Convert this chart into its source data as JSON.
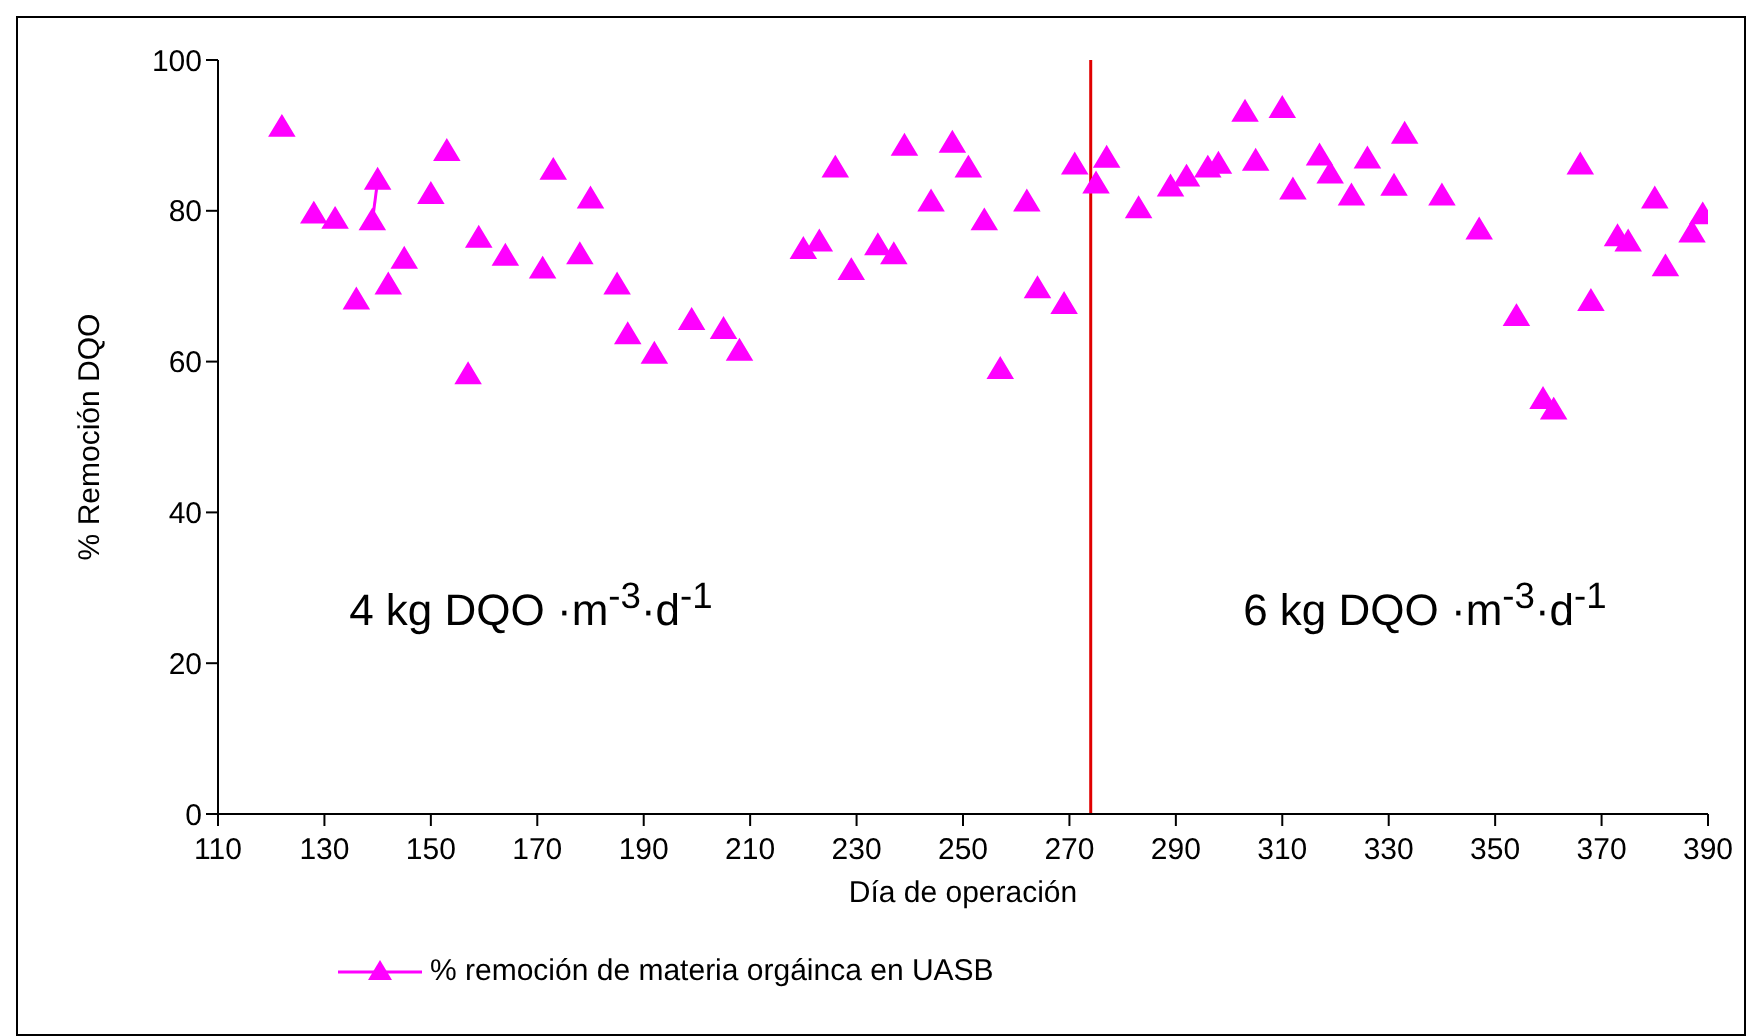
{
  "chart_data": {
    "type": "line",
    "xlabel": "Día de operación",
    "ylabel": "% Remoción DQO",
    "x": [
      122,
      123,
      128,
      129,
      132,
      133,
      136,
      137,
      139,
      140,
      141,
      142,
      143,
      145,
      146,
      150,
      151,
      153,
      154,
      157,
      158,
      159,
      160,
      164,
      165,
      171,
      172,
      173,
      174,
      178,
      179,
      180,
      181,
      185,
      186,
      187,
      188,
      192,
      193,
      199,
      200,
      205,
      206,
      208,
      209,
      220,
      221,
      223,
      224,
      226,
      227,
      229,
      230,
      234,
      235,
      237,
      238,
      239,
      240,
      244,
      245,
      248,
      249,
      251,
      252,
      254,
      255,
      257,
      258,
      262,
      263,
      264,
      265,
      269,
      270,
      271,
      272,
      275,
      276,
      277,
      278,
      283,
      284,
      289,
      290,
      292,
      293,
      296,
      297,
      298,
      299,
      303,
      304,
      305,
      306,
      310,
      311,
      312,
      313,
      317,
      318,
      319,
      320,
      323,
      324,
      326,
      327,
      331,
      332,
      333,
      334,
      340,
      341,
      347,
      348,
      354,
      355,
      359,
      360,
      361,
      362,
      366,
      367,
      368,
      369,
      373,
      374,
      375,
      376,
      380,
      381,
      382,
      383,
      387,
      388,
      389
    ],
    "series": [
      {
        "name": "% remoción de materia orgáinca en UASB",
        "color": "#ff00ff",
        "values": [
          91.0,
          null,
          79.5,
          null,
          78.8,
          null,
          68.1,
          null,
          78.6,
          84.0,
          null,
          70.1,
          null,
          73.5,
          null,
          82.1,
          null,
          87.8,
          null,
          58.2,
          null,
          76.3,
          null,
          73.9,
          null,
          72.2,
          null,
          85.3,
          null,
          74.1,
          null,
          81.5,
          null,
          70.1,
          null,
          63.5,
          null,
          60.9,
          null,
          65.4,
          null,
          64.2,
          null,
          61.3,
          null,
          74.8,
          null,
          75.8,
          null,
          85.6,
          null,
          72.0,
          null,
          75.3,
          null,
          74.1,
          null,
          88.5,
          null,
          81.1,
          null,
          88.9,
          null,
          85.6,
          null,
          78.6,
          null,
          58.9,
          null,
          81.1,
          null,
          69.6,
          null,
          67.5,
          null,
          86.0,
          null,
          83.5,
          null,
          86.9,
          null,
          80.2,
          null,
          83.1,
          null,
          84.4,
          null,
          85.6,
          null,
          86.1,
          null,
          93.0,
          null,
          86.5,
          null,
          93.5,
          null,
          82.7,
          null,
          87.2,
          null,
          84.8,
          null,
          81.9,
          null,
          86.8,
          null,
          83.2,
          null,
          90.1,
          null,
          81.9,
          null,
          77.4,
          null,
          65.9,
          null,
          54.9,
          null,
          53.5,
          null,
          86.0,
          null,
          67.9,
          null,
          76.5,
          null,
          75.8,
          null,
          81.5,
          null,
          72.5,
          null,
          77.0,
          null,
          79.4
        ]
      }
    ],
    "xlim": [
      110,
      390
    ],
    "xticks": [
      110,
      130,
      150,
      170,
      190,
      210,
      230,
      250,
      270,
      290,
      310,
      330,
      350,
      370,
      390
    ],
    "ylim": [
      0,
      100
    ],
    "yticks": [
      0,
      20,
      40,
      60,
      80,
      100
    ],
    "ref_lines": [
      {
        "axis": "x",
        "value": 274,
        "color": "#e00000"
      }
    ],
    "annotations": [
      "4 kg DQO ·m$^{-3}$·d$^{-1}$",
      "6 kg DQO ·m$^{-3}$·d$^{-1}$"
    ],
    "marker": "triangle",
    "grid": false,
    "legend": "bottom"
  }
}
